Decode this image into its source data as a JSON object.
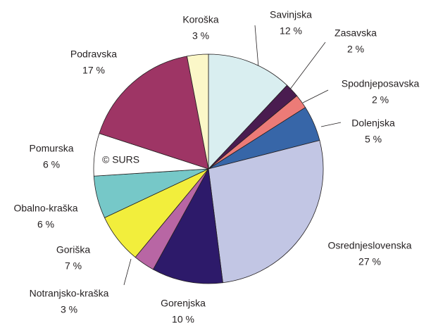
{
  "chart_data": {
    "type": "pie",
    "categories": [
      "Savinjska",
      "Zasavska",
      "Spodnjeposavska",
      "Dolenjska",
      "Osrednjeslovenska",
      "Gorenjska",
      "Notranjsko-kraška",
      "Goriška",
      "Obalno-kraška",
      "Pomurska",
      "Podravska",
      "Koroška"
    ],
    "values": [
      12,
      2,
      2,
      5,
      27,
      10,
      3,
      7,
      6,
      6,
      17,
      3
    ],
    "value_labels": [
      "12 %",
      "2 %",
      "2 %",
      "5 %",
      "27 %",
      "10 %",
      "3 %",
      "7 %",
      "6 %",
      "6 %",
      "17 %",
      "3 %"
    ],
    "colors": [
      "#d9eef0",
      "#4a1c50",
      "#ec7b77",
      "#3766a8",
      "#c2c6e4",
      "#2d1a6a",
      "#b866a4",
      "#f2ee3c",
      "#76c8c8",
      "#ffffff",
      "#9e3565",
      "#fbf7c8"
    ],
    "annotation": "© SURS"
  }
}
